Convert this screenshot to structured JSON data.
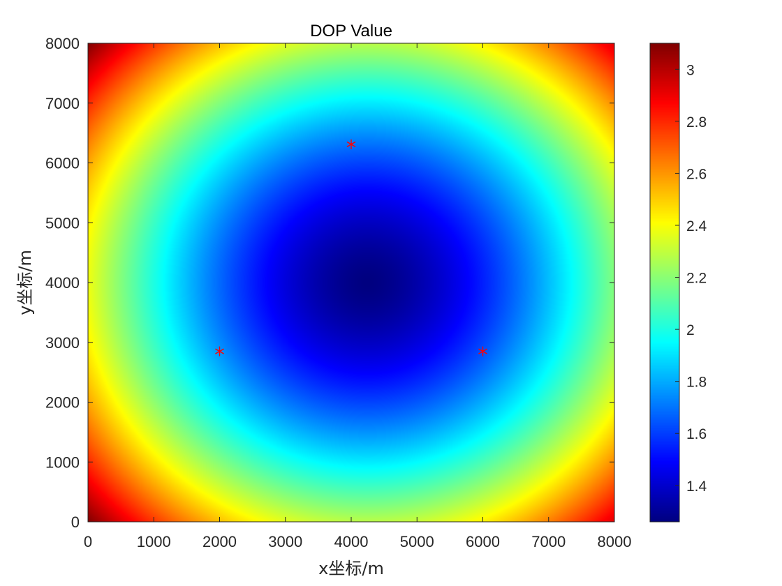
{
  "chart_data": {
    "type": "heatmap",
    "title": "DOP Value",
    "xlabel": "x坐标/m",
    "ylabel": "y坐标/m",
    "xlim": [
      0,
      8000
    ],
    "ylim": [
      0,
      8000
    ],
    "x_ticks": [
      0,
      1000,
      2000,
      3000,
      4000,
      5000,
      6000,
      7000,
      8000
    ],
    "y_ticks": [
      0,
      1000,
      2000,
      3000,
      4000,
      5000,
      6000,
      7000,
      8000
    ],
    "x_tick_labels": [
      "0",
      "1000",
      "2000",
      "3000",
      "4000",
      "5000",
      "6000",
      "7000",
      "8000"
    ],
    "y_tick_labels": [
      "0",
      "1000",
      "2000",
      "3000",
      "4000",
      "5000",
      "6000",
      "7000",
      "8000"
    ],
    "colormap": "jet",
    "colorbar": {
      "range": [
        1.26,
        3.1
      ],
      "ticks": [
        1.4,
        1.6,
        1.8,
        2.0,
        2.2,
        2.4,
        2.6,
        2.8,
        3.0
      ],
      "tick_labels": [
        "1.4",
        "1.6",
        "1.8",
        "2",
        "2.2",
        "2.4",
        "2.6",
        "2.8",
        "3"
      ],
      "placement": "right"
    },
    "field": {
      "min_value": 1.26,
      "min_location": [
        4250,
        4000
      ],
      "max_value": 3.1,
      "corner_value": 3.1
    },
    "stations": {
      "marker": "asterisk",
      "color": "#ff0000",
      "points": [
        {
          "x": 4000,
          "y": 6310
        },
        {
          "x": 2000,
          "y": 2850
        },
        {
          "x": 6000,
          "y": 2850
        }
      ]
    },
    "grid": false
  }
}
